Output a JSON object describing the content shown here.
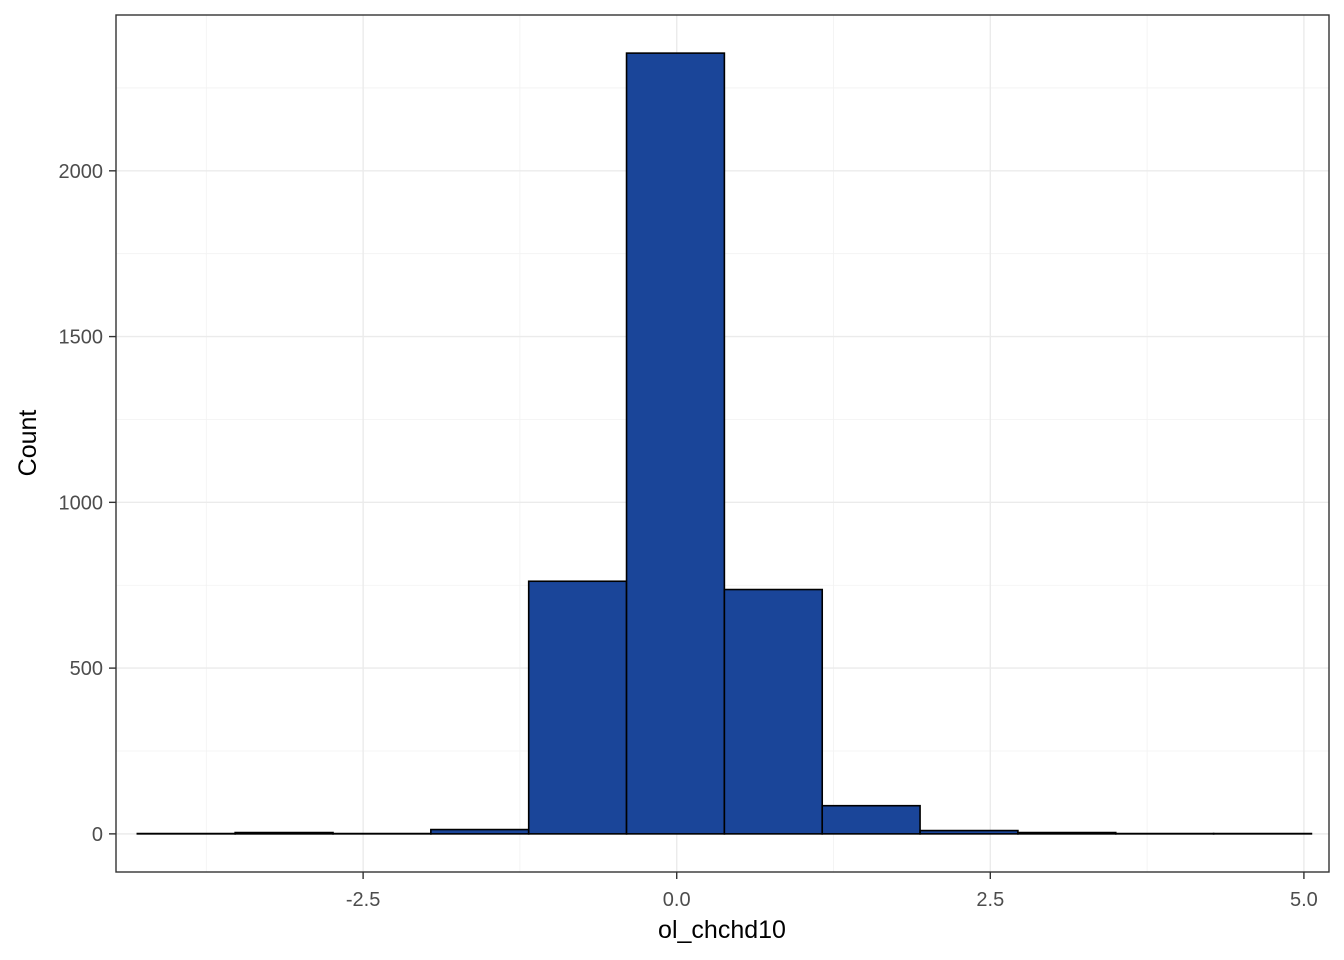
{
  "chart_data": {
    "type": "bar",
    "subtype": "histogram",
    "title": "",
    "xlabel": "ol_chchd10",
    "ylabel": "Count",
    "xlim": [
      -4.47,
      5.2
    ],
    "ylim": [
      -115,
      2470
    ],
    "x_ticks": [
      -2.5,
      0.0,
      2.5,
      5.0
    ],
    "x_tick_labels": [
      "-2.5",
      "0.0",
      "2.5",
      "5.0"
    ],
    "y_ticks": [
      0,
      500,
      1000,
      1500,
      2000
    ],
    "y_tick_labels": [
      "0",
      "500",
      "1000",
      "1500",
      "2000"
    ],
    "grid": true,
    "bar_color": "#1a4599",
    "bar_edge_color": "#000000",
    "bin_edges": [
      -4.3,
      -3.52,
      -2.74,
      -1.96,
      -1.18,
      -0.4,
      0.38,
      1.16,
      1.94,
      2.72,
      3.5,
      4.28,
      5.06
    ],
    "values": [
      1,
      4,
      1,
      13,
      762,
      2355,
      737,
      85,
      10,
      4,
      1,
      1
    ]
  }
}
